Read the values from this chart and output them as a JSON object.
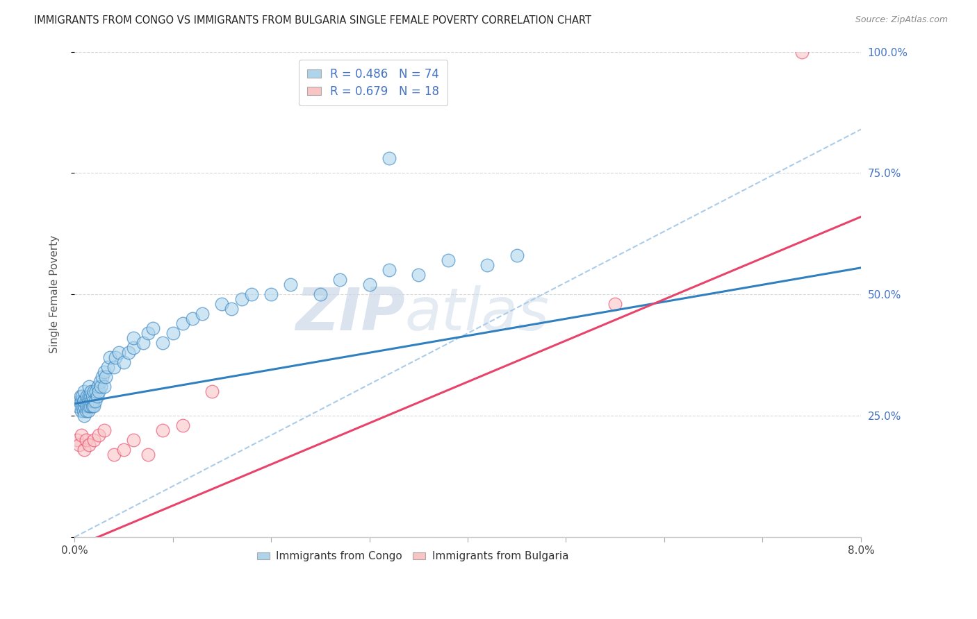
{
  "title": "IMMIGRANTS FROM CONGO VS IMMIGRANTS FROM BULGARIA SINGLE FEMALE POVERTY CORRELATION CHART",
  "source": "Source: ZipAtlas.com",
  "ylabel": "Single Female Poverty",
  "legend_1_R": "0.486",
  "legend_1_N": "74",
  "legend_2_R": "0.679",
  "legend_2_N": "18",
  "color_congo": "#92c5de",
  "color_bulgaria": "#f4a582",
  "color_congo_fill": "#aed4eb",
  "color_bulgaria_fill": "#f9c4c4",
  "color_trendline_congo": "#3080c0",
  "color_trendline_bulgaria": "#e8436a",
  "color_dashed": "#aacce8",
  "right_ytick_color": "#4472c4",
  "watermark_color": "#ccd8e8",
  "xlim": [
    0.0,
    0.08
  ],
  "ylim": [
    0.0,
    1.0
  ],
  "grid_color": "#d8d8d8",
  "trendline_congo_slope": 3.5,
  "trendline_congo_intercept": 0.275,
  "trendline_bulgaria_slope": 8.5,
  "trendline_bulgaria_intercept": -0.02,
  "dashed_slope": 10.5,
  "dashed_intercept": 0.0,
  "congo_x": [
    0.0003,
    0.0005,
    0.0006,
    0.0007,
    0.0007,
    0.0008,
    0.0008,
    0.0009,
    0.0009,
    0.001,
    0.001,
    0.001,
    0.001,
    0.0012,
    0.0012,
    0.0013,
    0.0013,
    0.0014,
    0.0014,
    0.0015,
    0.0015,
    0.0015,
    0.0016,
    0.0016,
    0.0017,
    0.0017,
    0.0018,
    0.0018,
    0.0019,
    0.002,
    0.002,
    0.0021,
    0.0022,
    0.0023,
    0.0024,
    0.0025,
    0.0026,
    0.0027,
    0.0028,
    0.003,
    0.003,
    0.0032,
    0.0034,
    0.0036,
    0.004,
    0.0042,
    0.0045,
    0.005,
    0.0055,
    0.006,
    0.006,
    0.007,
    0.0075,
    0.008,
    0.009,
    0.01,
    0.011,
    0.012,
    0.013,
    0.015,
    0.016,
    0.017,
    0.018,
    0.02,
    0.022,
    0.025,
    0.027,
    0.03,
    0.032,
    0.035,
    0.038,
    0.042,
    0.045,
    0.032
  ],
  "congo_y": [
    0.27,
    0.28,
    0.29,
    0.26,
    0.28,
    0.27,
    0.29,
    0.26,
    0.28,
    0.25,
    0.27,
    0.28,
    0.3,
    0.26,
    0.28,
    0.27,
    0.29,
    0.26,
    0.28,
    0.27,
    0.29,
    0.31,
    0.27,
    0.29,
    0.28,
    0.3,
    0.27,
    0.29,
    0.28,
    0.27,
    0.3,
    0.28,
    0.3,
    0.29,
    0.31,
    0.3,
    0.32,
    0.31,
    0.33,
    0.31,
    0.34,
    0.33,
    0.35,
    0.37,
    0.35,
    0.37,
    0.38,
    0.36,
    0.38,
    0.39,
    0.41,
    0.4,
    0.42,
    0.43,
    0.4,
    0.42,
    0.44,
    0.45,
    0.46,
    0.48,
    0.47,
    0.49,
    0.5,
    0.5,
    0.52,
    0.5,
    0.53,
    0.52,
    0.55,
    0.54,
    0.57,
    0.56,
    0.58,
    0.78
  ],
  "bulgaria_x": [
    0.0003,
    0.0005,
    0.0007,
    0.001,
    0.0012,
    0.0015,
    0.002,
    0.0025,
    0.003,
    0.004,
    0.005,
    0.006,
    0.0075,
    0.009,
    0.011,
    0.014,
    0.055,
    0.074
  ],
  "bulgaria_y": [
    0.2,
    0.19,
    0.21,
    0.18,
    0.2,
    0.19,
    0.2,
    0.21,
    0.22,
    0.17,
    0.18,
    0.2,
    0.17,
    0.22,
    0.23,
    0.3,
    0.48,
    1.0
  ]
}
